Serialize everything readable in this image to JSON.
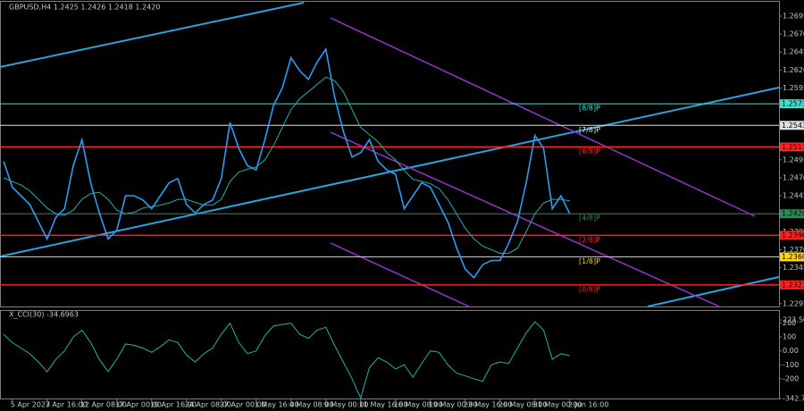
{
  "chart_data": [
    {
      "type": "line",
      "title": "GBPUSD,H4  1.2425 1.2426 1.2418 1.2420",
      "categories": [
        null,
        "5 Apr 2023",
        null,
        null,
        null,
        "7 Apr 16:00",
        null,
        null,
        null,
        "12 Apr 08:00",
        null,
        null,
        null,
        "17 Apr 00:00",
        null,
        null,
        null,
        "19 Apr 16:00",
        null,
        null,
        null,
        "24 Apr 08:00",
        null,
        null,
        null,
        "27 Apr 00:00",
        null,
        null,
        null,
        "1 May 16:00",
        null,
        null,
        null,
        "4 May 08:00",
        null,
        null,
        null,
        "9 May 00:00",
        null,
        null,
        null,
        "11 May 16:00",
        null,
        null,
        null,
        "16 May 08:00",
        null,
        null,
        null,
        "19 May 00:00",
        null,
        null,
        null,
        "23 May 16:00",
        null,
        null,
        null,
        "26 May 08:00",
        null,
        null,
        null,
        "31 May 00:00",
        null,
        null,
        null,
        "2 Jun 16:00"
      ],
      "series": [
        {
          "color": "#2a9df4",
          "values": [
            1.2493,
            1.2457,
            1.2445,
            1.2433,
            1.2409,
            1.2385,
            1.2415,
            1.2427,
            1.2487,
            1.2523,
            1.2463,
            1.2421,
            1.2385,
            1.2397,
            1.2445,
            1.2445,
            1.2439,
            1.2427,
            1.2445,
            1.2463,
            1.2469,
            1.2433,
            1.2421,
            1.2433,
            1.2439,
            1.2469,
            1.2547,
            1.2511,
            1.2487,
            1.2481,
            1.2523,
            1.2571,
            1.2595,
            1.2637,
            1.2619,
            1.2607,
            1.2631,
            1.2649,
            1.2583,
            1.2535,
            1.2499,
            1.2505,
            1.2523,
            1.2493,
            1.2481,
            1.2475,
            1.2427,
            1.2445,
            1.2463,
            1.2457,
            1.2433,
            1.2409,
            1.2373,
            1.2343,
            1.2331,
            1.2349,
            1.2355,
            1.2355,
            1.2379,
            1.2409,
            1.2463,
            1.2529,
            1.2511,
            1.2427,
            1.2445,
            1.242
          ]
        },
        {
          "color": "#20b2aa",
          "values": [
            1.247,
            1.2465,
            1.246,
            1.2452,
            1.244,
            1.2428,
            1.242,
            1.2418,
            1.2425,
            1.244,
            1.2448,
            1.245,
            1.244,
            1.2425,
            1.242,
            1.2422,
            1.2428,
            1.243,
            1.2432,
            1.2435,
            1.244,
            1.244,
            1.2436,
            1.2432,
            1.2432,
            1.244,
            1.2465,
            1.2478,
            1.2482,
            1.2485,
            1.2495,
            1.2515,
            1.254,
            1.2565,
            1.258,
            1.259,
            1.26,
            1.261,
            1.2605,
            1.259,
            1.2565,
            1.254,
            1.253,
            1.252,
            1.2505,
            1.2495,
            1.248,
            1.2468,
            1.2465,
            1.2462,
            1.2455,
            1.244,
            1.242,
            1.24,
            1.2385,
            1.2375,
            1.237,
            1.2365,
            1.2365,
            1.2372,
            1.2395,
            1.242,
            1.2435,
            1.244,
            1.244,
            1.2438
          ]
        }
      ],
      "ylim": [
        1.2291,
        1.27
      ],
      "yticks": [
        {
          "value": 1.2695,
          "label": "1.2695"
        },
        {
          "value": 1.267,
          "label": "1.2670"
        },
        {
          "value": 1.2645,
          "label": "1.2645"
        },
        {
          "value": 1.262,
          "label": "1.2620"
        },
        {
          "value": 1.2595,
          "label": "1.2595"
        },
        {
          "value": 1.2495,
          "label": "1.2495"
        },
        {
          "value": 1.247,
          "label": "1.2470"
        },
        {
          "value": 1.2445,
          "label": "1.2445"
        },
        {
          "value": 1.2395,
          "label": "1.2395"
        },
        {
          "value": 1.237,
          "label": "1.2370"
        },
        {
          "value": 1.2345,
          "label": "1.2345"
        },
        {
          "value": 1.2295,
          "label": "1.2295"
        }
      ],
      "levels": [
        {
          "value": 1.2573,
          "label": "1.2573",
          "tag": "[8/8]P",
          "color": "#40e0d0"
        },
        {
          "value": 1.2543,
          "label": "1.2543",
          "tag": "[7/8]P",
          "color": "#e0e0e0"
        },
        {
          "value": 1.2513,
          "label": "1.2513",
          "tag": "[6/8]P",
          "color": "#ff2020"
        },
        {
          "value": 1.242,
          "label": "1.2420",
          "tag": "[4/8]P",
          "color": "#2e8b57"
        },
        {
          "value": 1.239,
          "label": "1.2390",
          "tag": "[2/8]P",
          "color": "#ff2020"
        },
        {
          "value": 1.236,
          "label": "1.2360",
          "tag": "[1/8]P",
          "color": "#ffd700"
        },
        {
          "value": 1.2321,
          "label": "1.2321",
          "tag": "[0/8]P",
          "color": "#ff2020"
        }
      ],
      "grid": false
    },
    {
      "type": "line",
      "title": "X_CCI(30) -34.6963",
      "series": [
        {
          "color": "#20b2aa",
          "values": [
            120,
            60,
            20,
            -20,
            -80,
            -150,
            -60,
            0,
            100,
            150,
            60,
            -60,
            -150,
            -60,
            50,
            40,
            20,
            -10,
            30,
            80,
            60,
            -30,
            -80,
            -20,
            20,
            120,
            200,
            60,
            -20,
            0,
            110,
            180,
            190,
            200,
            120,
            90,
            150,
            170,
            40,
            -80,
            -200,
            -340,
            -120,
            -50,
            -80,
            -130,
            -100,
            -190,
            -90,
            0,
            -10,
            -100,
            -160,
            -180,
            -200,
            -220,
            -100,
            -80,
            -90,
            20,
            130,
            210,
            150,
            -60,
            -20,
            -34.6963
          ]
        }
      ],
      "ylim": [
        -342.7902,
        223.5004
      ],
      "yticks": [
        223.5004,
        200,
        100,
        {
          "value": 0,
          "label": "0.00"
        },
        -100,
        -200,
        -342.7902
      ],
      "grid": false
    }
  ]
}
